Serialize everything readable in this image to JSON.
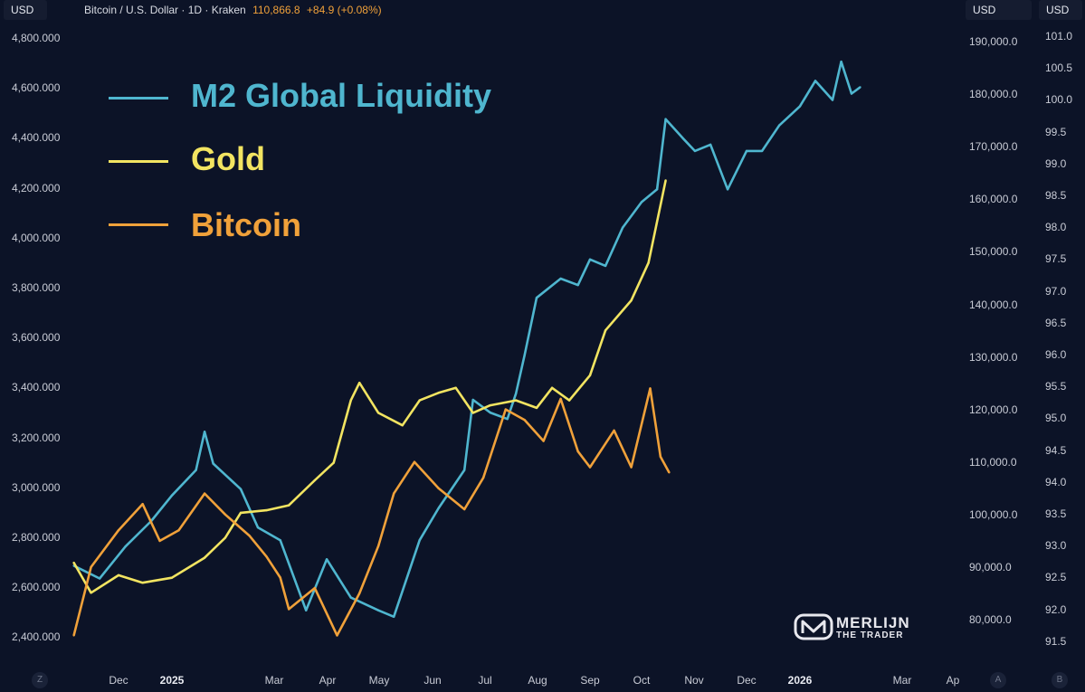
{
  "header": {
    "left_currency": "USD",
    "right_currency_1": "USD",
    "right_currency_2": "USD",
    "symbol": "Bitcoin / U.S. Dollar · 1D · Kraken",
    "price": "110,866.8",
    "change": "+84.9 (+0.08%)"
  },
  "left_axis": [
    "4,800.000",
    "4,600.000",
    "4,400.000",
    "4,200.000",
    "4,000.000",
    "3,800.000",
    "3,600.000",
    "3,400.000",
    "3,200.000",
    "3,000.000",
    "2,800.000",
    "2,600.000",
    "2,400.000"
  ],
  "right_axis_1": [
    "190,000.0",
    "180,000.0",
    "170,000.0",
    "160,000.0",
    "150,000.0",
    "140,000.0",
    "130,000.0",
    "120,000.0",
    "110,000.0",
    "100,000.0",
    "90,000.0",
    "80,000.0"
  ],
  "right_axis_2": [
    "101.0",
    "100.5",
    "100.0",
    "99.5",
    "99.0",
    "98.5",
    "98.0",
    "97.5",
    "97.0",
    "96.5",
    "96.0",
    "95.5",
    "95.0",
    "94.5",
    "94.0",
    "93.5",
    "93.0",
    "92.5",
    "92.0",
    "91.5"
  ],
  "x_axis": [
    {
      "label": "Dec",
      "bold": false
    },
    {
      "label": "2025",
      "bold": true
    },
    {
      "label": "Mar",
      "bold": false
    },
    {
      "label": "Apr",
      "bold": false
    },
    {
      "label": "May",
      "bold": false
    },
    {
      "label": "Jun",
      "bold": false
    },
    {
      "label": "Jul",
      "bold": false
    },
    {
      "label": "Aug",
      "bold": false
    },
    {
      "label": "Sep",
      "bold": false
    },
    {
      "label": "Oct",
      "bold": false
    },
    {
      "label": "Nov",
      "bold": false
    },
    {
      "label": "Dec",
      "bold": false
    },
    {
      "label": "2026",
      "bold": true
    },
    {
      "label": "Mar",
      "bold": false
    },
    {
      "label": "Ap",
      "bold": false
    }
  ],
  "corner_buttons": {
    "left": "Z",
    "right_a": "A",
    "right_b": "B"
  },
  "legend": [
    {
      "name": "M2 Global Liquidity",
      "color": "#4fb6cf"
    },
    {
      "name": "Gold",
      "color": "#f2e461"
    },
    {
      "name": "Bitcoin",
      "color": "#f0a13a"
    }
  ],
  "logo": {
    "line1": "MERLIJN",
    "line2": "THE TRADER"
  },
  "chart_data": {
    "type": "line",
    "title": "",
    "x_unit": "date",
    "y_axes": {
      "left": {
        "label": "",
        "unit": "USD",
        "range": [
          2400,
          4800
        ],
        "series": "Gold"
      },
      "right_1": {
        "label": "",
        "unit": "USD",
        "range": [
          75000,
          195000
        ],
        "series": "Bitcoin"
      },
      "right_2": {
        "label": "",
        "unit": "",
        "range": [
          91.5,
          101.0
        ],
        "series": "M2 Global Liquidity"
      }
    },
    "series": [
      {
        "name": "M2 Global Liquidity",
        "color": "#4fb6cf",
        "axis": "right_2",
        "points": [
          [
            "2024-11-05",
            92.7
          ],
          [
            "2024-11-20",
            92.5
          ],
          [
            "2024-12-05",
            93.0
          ],
          [
            "2024-12-20",
            93.4
          ],
          [
            "2025-01-01",
            93.8
          ],
          [
            "2025-01-15",
            94.2
          ],
          [
            "2025-01-20",
            94.8
          ],
          [
            "2025-01-25",
            94.3
          ],
          [
            "2025-02-10",
            93.9
          ],
          [
            "2025-02-20",
            93.3
          ],
          [
            "2025-03-05",
            93.1
          ],
          [
            "2025-03-20",
            92.0
          ],
          [
            "2025-04-01",
            92.8
          ],
          [
            "2025-04-15",
            92.2
          ],
          [
            "2025-05-01",
            92.0
          ],
          [
            "2025-05-10",
            91.9
          ],
          [
            "2025-05-25",
            93.1
          ],
          [
            "2025-06-05",
            93.6
          ],
          [
            "2025-06-20",
            94.2
          ],
          [
            "2025-06-25",
            95.3
          ],
          [
            "2025-07-05",
            95.1
          ],
          [
            "2025-07-15",
            95.0
          ],
          [
            "2025-07-20",
            95.4
          ],
          [
            "2025-07-25",
            96.0
          ],
          [
            "2025-08-01",
            96.9
          ],
          [
            "2025-08-15",
            97.2
          ],
          [
            "2025-08-25",
            97.1
          ],
          [
            "2025-09-01",
            97.5
          ],
          [
            "2025-09-10",
            97.4
          ],
          [
            "2025-09-20",
            98.0
          ],
          [
            "2025-10-01",
            98.4
          ],
          [
            "2025-10-10",
            98.6
          ],
          [
            "2025-10-15",
            99.7
          ],
          [
            "2025-10-25",
            99.4
          ],
          [
            "2025-11-01",
            99.2
          ],
          [
            "2025-11-10",
            99.3
          ],
          [
            "2025-11-20",
            98.6
          ],
          [
            "2025-12-01",
            99.2
          ],
          [
            "2025-12-10",
            99.2
          ],
          [
            "2025-12-20",
            99.6
          ],
          [
            "2026-01-01",
            99.9
          ],
          [
            "2026-01-10",
            100.3
          ],
          [
            "2026-01-20",
            100.0
          ],
          [
            "2026-01-25",
            100.6
          ],
          [
            "2026-01-31",
            100.1
          ],
          [
            "2026-02-05",
            100.2
          ]
        ]
      },
      {
        "name": "Gold",
        "color": "#f2e461",
        "axis": "left",
        "points": [
          [
            "2024-11-05",
            2700
          ],
          [
            "2024-11-15",
            2580
          ],
          [
            "2024-12-01",
            2650
          ],
          [
            "2024-12-15",
            2620
          ],
          [
            "2025-01-01",
            2640
          ],
          [
            "2025-01-20",
            2720
          ],
          [
            "2025-02-01",
            2800
          ],
          [
            "2025-02-10",
            2900
          ],
          [
            "2025-02-25",
            2910
          ],
          [
            "2025-03-10",
            2930
          ],
          [
            "2025-03-25",
            3030
          ],
          [
            "2025-04-05",
            3100
          ],
          [
            "2025-04-15",
            3350
          ],
          [
            "2025-04-20",
            3420
          ],
          [
            "2025-05-01",
            3300
          ],
          [
            "2025-05-15",
            3250
          ],
          [
            "2025-05-25",
            3350
          ],
          [
            "2025-06-05",
            3380
          ],
          [
            "2025-06-15",
            3400
          ],
          [
            "2025-06-25",
            3300
          ],
          [
            "2025-07-05",
            3330
          ],
          [
            "2025-07-20",
            3350
          ],
          [
            "2025-08-01",
            3320
          ],
          [
            "2025-08-10",
            3400
          ],
          [
            "2025-08-20",
            3350
          ],
          [
            "2025-09-01",
            3450
          ],
          [
            "2025-09-10",
            3630
          ],
          [
            "2025-09-25",
            3750
          ],
          [
            "2025-10-05",
            3900
          ],
          [
            "2025-10-15",
            4230
          ]
        ]
      },
      {
        "name": "Bitcoin",
        "color": "#f0a13a",
        "axis": "right_1",
        "points": [
          [
            "2024-11-05",
            77000
          ],
          [
            "2024-11-15",
            90000
          ],
          [
            "2024-12-01",
            97000
          ],
          [
            "2024-12-15",
            102000
          ],
          [
            "2024-12-25",
            95000
          ],
          [
            "2025-01-05",
            97000
          ],
          [
            "2025-01-20",
            104000
          ],
          [
            "2025-02-01",
            100000
          ],
          [
            "2025-02-15",
            96000
          ],
          [
            "2025-02-25",
            92000
          ],
          [
            "2025-03-05",
            88000
          ],
          [
            "2025-03-10",
            82000
          ],
          [
            "2025-03-25",
            86000
          ],
          [
            "2025-04-07",
            77000
          ],
          [
            "2025-04-20",
            85000
          ],
          [
            "2025-05-01",
            94000
          ],
          [
            "2025-05-10",
            104000
          ],
          [
            "2025-05-22",
            110000
          ],
          [
            "2025-06-05",
            105000
          ],
          [
            "2025-06-20",
            101000
          ],
          [
            "2025-07-01",
            107000
          ],
          [
            "2025-07-14",
            120000
          ],
          [
            "2025-07-25",
            118000
          ],
          [
            "2025-08-05",
            114000
          ],
          [
            "2025-08-15",
            122000
          ],
          [
            "2025-08-25",
            112000
          ],
          [
            "2025-09-01",
            109000
          ],
          [
            "2025-09-15",
            116000
          ],
          [
            "2025-09-25",
            109000
          ],
          [
            "2025-10-06",
            124000
          ],
          [
            "2025-10-12",
            111000
          ],
          [
            "2025-10-17",
            108000
          ]
        ]
      }
    ]
  }
}
